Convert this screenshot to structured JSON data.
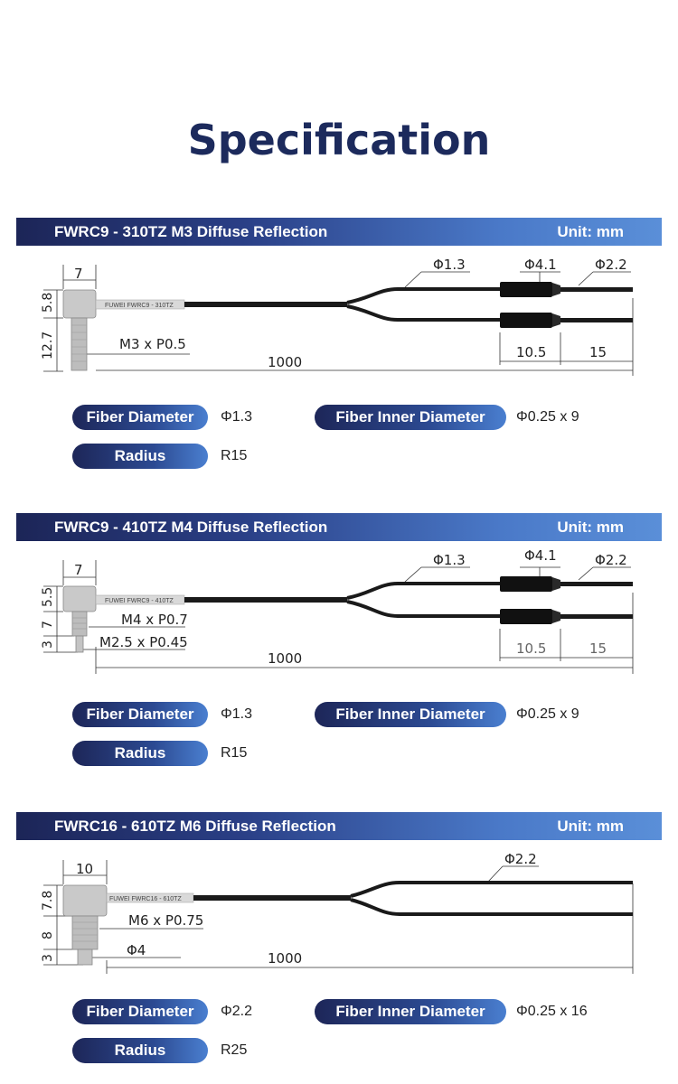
{
  "title": "Specification",
  "labels": {
    "fiber_diameter": "Fiber Diameter",
    "fiber_inner_diameter": "Fiber Inner Diameter",
    "radius": "Radius"
  },
  "sections": [
    {
      "model": "FWRC9 - 310TZ   M3 Diffuse Reflection",
      "unit": "Unit: mm",
      "part_label": "FUWEI FWRC9 - 310TZ",
      "dims": {
        "head_width": "7",
        "head_height": "5.8",
        "thread_length": "12.7",
        "thread": "M3 x P0.5",
        "length": "1000",
        "fiber": "Φ1.3",
        "connector": "Φ4.1",
        "tail": "Φ2.2",
        "conn_len": "10.5",
        "tail_len": "15"
      },
      "fiber_diameter": "Φ1.3",
      "fiber_inner_diameter": "Φ0.25 x 9",
      "radius": "R15"
    },
    {
      "model": "FWRC9 - 410TZ   M4 Diffuse Reflection",
      "unit": "Unit: mm",
      "part_label": "FUWEI FWRC9 - 410TZ",
      "dims": {
        "head_width": "7",
        "head_height": "5.5",
        "thread_length": "7",
        "tip_length": "3",
        "thread": "M4 x P0.7",
        "thread2": "M2.5 x P0.45",
        "length": "1000",
        "fiber": "Φ1.3",
        "connector": "Φ4.1",
        "tail": "Φ2.2",
        "conn_len": "10.5",
        "tail_len": "15"
      },
      "fiber_diameter": "Φ1.3",
      "fiber_inner_diameter": "Φ0.25 x 9",
      "radius": "R15"
    },
    {
      "model": "FWRC16 - 610TZ   M6 Diffuse Reflection",
      "unit": "Unit: mm",
      "part_label": "FUWEI FWRC16 - 610TZ",
      "dims": {
        "head_width": "10",
        "head_height": "7.8",
        "thread_length": "8",
        "tip_length": "3",
        "thread": "M6 x P0.75",
        "tip": "Φ4",
        "length": "1000",
        "fiber": "Φ2.2"
      },
      "fiber_diameter": "Φ2.2",
      "fiber_inner_diameter": "Φ0.25 x 16",
      "radius": "R25"
    }
  ]
}
